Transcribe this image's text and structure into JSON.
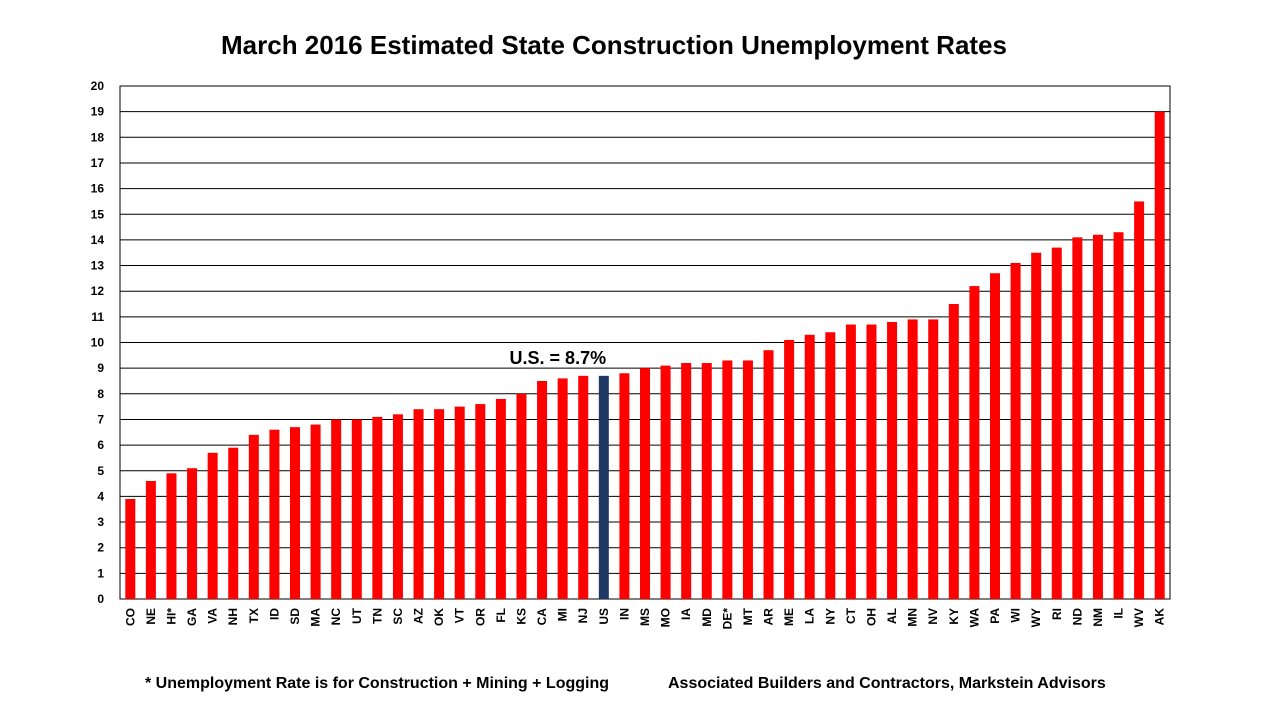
{
  "chart_data": {
    "type": "bar",
    "title": "March 2016 Estimated State Construction Unemployment Rates",
    "xlabel": "",
    "ylabel": "",
    "ylim": [
      0,
      20
    ],
    "ytick_step": 1,
    "grid": true,
    "categories": [
      "CO",
      "NE",
      "HI*",
      "GA",
      "VA",
      "NH",
      "TX",
      "ID",
      "SD",
      "MA",
      "NC",
      "UT",
      "TN",
      "SC",
      "AZ",
      "OK",
      "VT",
      "OR",
      "FL",
      "KS",
      "CA",
      "MI",
      "NJ",
      "US",
      "IN",
      "MS",
      "MO",
      "IA",
      "MD",
      "DE*",
      "MT",
      "AR",
      "ME",
      "LA",
      "NY",
      "CT",
      "OH",
      "AL",
      "MN",
      "NV",
      "KY",
      "WA",
      "PA",
      "WI",
      "WY",
      "RI",
      "ND",
      "NM",
      "IL",
      "WV",
      "AK"
    ],
    "values": [
      3.9,
      4.6,
      4.9,
      5.1,
      5.7,
      5.9,
      6.4,
      6.6,
      6.7,
      6.8,
      7.0,
      7.0,
      7.1,
      7.2,
      7.4,
      7.4,
      7.5,
      7.6,
      7.8,
      8.0,
      8.5,
      8.6,
      8.7,
      8.7,
      8.8,
      9.0,
      9.1,
      9.2,
      9.2,
      9.3,
      9.3,
      9.7,
      10.1,
      10.3,
      10.4,
      10.7,
      10.7,
      10.8,
      10.9,
      10.9,
      11.5,
      12.2,
      12.7,
      13.1,
      13.5,
      13.7,
      14.1,
      14.2,
      14.3,
      15.5,
      19.0
    ],
    "highlight_category": "US",
    "annotation": "U.S. = 8.7%",
    "colors": {
      "bar": "#ff0000",
      "highlight": "#1f3864",
      "grid": "#000000"
    }
  },
  "footnotes": {
    "left": "* Unemployment Rate is for Construction + Mining + Logging",
    "right": "Associated Builders and Contractors, Markstein Advisors"
  }
}
